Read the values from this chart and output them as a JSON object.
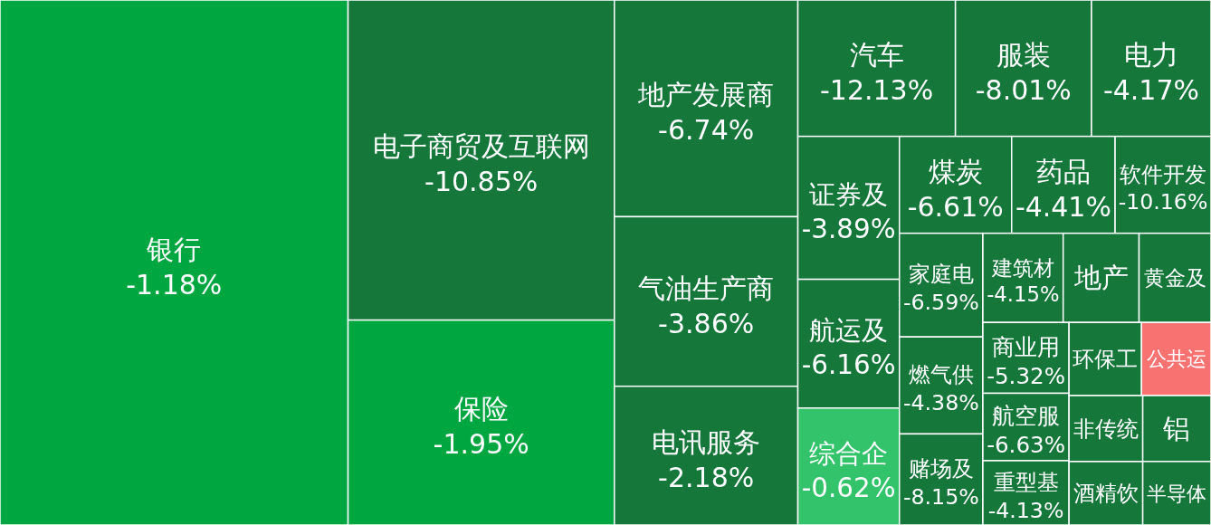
{
  "chart_data": {
    "type": "other",
    "categories": [
      "银行",
      "电子商贸及互联网",
      "保险",
      "地产发展商",
      "气油生产商",
      "电讯服务",
      "汽车",
      "服装",
      "电力",
      "证券及",
      "航运及",
      "综合企",
      "煤炭",
      "药品",
      "软件开发",
      "家庭电",
      "燃气供",
      "赌场及",
      "建筑材",
      "地产",
      "黄金及",
      "商业用",
      "航空服",
      "重型基",
      "环保工",
      "公共运",
      "非传统",
      "酒精饮",
      "铝",
      "半导体"
    ],
    "values": [
      -1.18,
      -10.85,
      -1.95,
      -6.74,
      -3.86,
      -2.18,
      -12.13,
      -8.01,
      -4.17,
      -3.89,
      -6.16,
      -0.62,
      -6.61,
      -4.41,
      -10.16,
      -6.59,
      -4.38,
      -8.15,
      -4.15,
      null,
      null,
      -5.32,
      -6.63,
      -4.13,
      null,
      null,
      null,
      null,
      null,
      null
    ],
    "value_labels": [
      "-1.18%",
      "-10.85%",
      "-1.95%",
      "-6.74%",
      "-3.86%",
      "-2.18%",
      "-12.13%",
      "-8.01%",
      "-4.17%",
      "-3.89%",
      "-6.16%",
      "-0.62%",
      "-6.61%",
      "-4.41%",
      "-10.16%",
      "-6.59%",
      "-4.38%",
      "-8.15%",
      "-4.15%",
      null,
      null,
      "-5.32%",
      "-6.63%",
      "-4.13%",
      null,
      null,
      null,
      null,
      null,
      null
    ],
    "colors": [
      "#00a640",
      "#15773a",
      "#00a640",
      "#15773a",
      "#15773a",
      "#15773a",
      "#15773a",
      "#15773a",
      "#15773a",
      "#15773a",
      "#15773a",
      "#33c36b",
      "#15773a",
      "#15773a",
      "#15773a",
      "#15773a",
      "#15773a",
      "#15773a",
      "#15773a",
      "#15773a",
      "#15773a",
      "#15773a",
      "#15773a",
      "#15773a",
      "#15773a",
      "#f87272",
      "#15773a",
      "#15773a",
      "#15773a",
      "#15773a"
    ]
  }
}
